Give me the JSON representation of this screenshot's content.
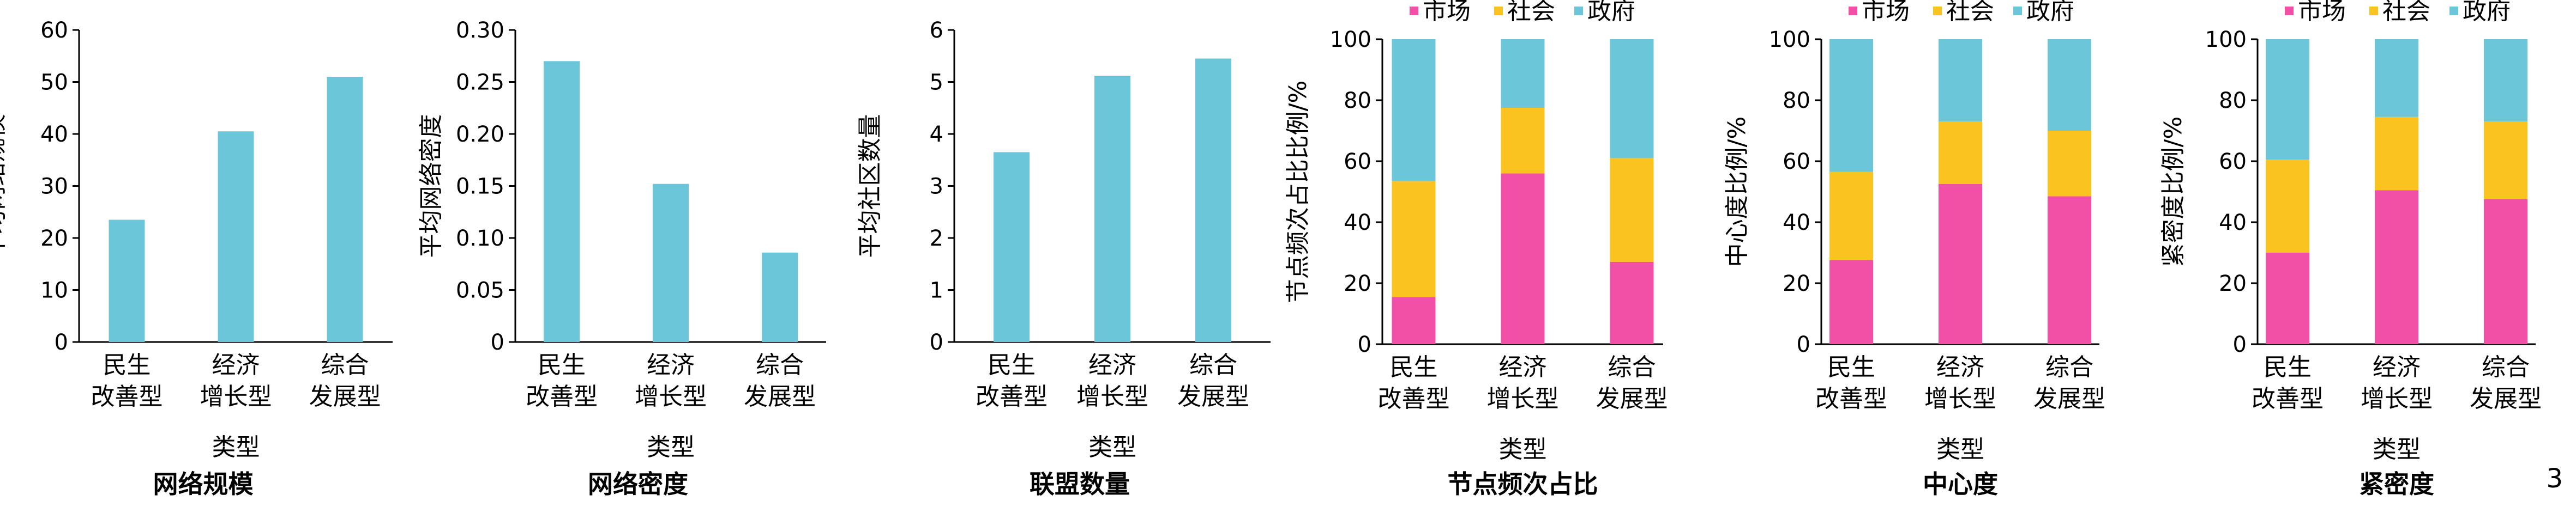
{
  "colors": {
    "bar": "#6bc6da",
    "market": "#f24fa6",
    "society": "#fbc31f",
    "government": "#6bc6da"
  },
  "page_number": "3",
  "chart_data": [
    {
      "type": "bar",
      "title": "网络规模",
      "xlabel": "类型",
      "ylabel": "平均网络规模",
      "categories": [
        [
          "民生",
          "改善型"
        ],
        [
          "经济",
          "增长型"
        ],
        [
          "综合",
          "发展型"
        ]
      ],
      "values": [
        23.5,
        40.5,
        51
      ],
      "ylim": [
        0,
        60
      ],
      "yticks": [
        "0",
        "10",
        "20",
        "30",
        "40",
        "50",
        "60"
      ],
      "ytick_values": [
        0,
        10,
        20,
        30,
        40,
        50,
        60
      ],
      "grid": false
    },
    {
      "type": "bar",
      "title": "网络密度",
      "xlabel": "类型",
      "ylabel": "平均网络密度",
      "categories": [
        [
          "民生",
          "改善型"
        ],
        [
          "经济",
          "增长型"
        ],
        [
          "综合",
          "发展型"
        ]
      ],
      "values": [
        0.27,
        0.152,
        0.086
      ],
      "ylim": [
        0,
        0.3
      ],
      "yticks": [
        "0",
        "0.05",
        "0.10",
        "0.15",
        "0.20",
        "0.25",
        "0.30"
      ],
      "ytick_values": [
        0,
        0.05,
        0.1,
        0.15,
        0.2,
        0.25,
        0.3
      ],
      "grid": false
    },
    {
      "type": "bar",
      "title": "联盟数量",
      "xlabel": "类型",
      "ylabel": "平均社区数量",
      "categories": [
        [
          "民生",
          "改善型"
        ],
        [
          "经济",
          "增长型"
        ],
        [
          "综合",
          "发展型"
        ]
      ],
      "values": [
        3.65,
        5.12,
        5.45
      ],
      "ylim": [
        0,
        6
      ],
      "yticks": [
        "0",
        "1",
        "2",
        "3",
        "4",
        "5",
        "6"
      ],
      "ytick_values": [
        0,
        1,
        2,
        3,
        4,
        5,
        6
      ],
      "grid": false
    },
    {
      "type": "stacked-bar",
      "title": "节点频次占比",
      "xlabel": "类型",
      "ylabel": "节点频次占比比例/%",
      "categories": [
        [
          "民生",
          "改善型"
        ],
        [
          "经济",
          "增长型"
        ],
        [
          "综合",
          "发展型"
        ]
      ],
      "legend": [
        "市场",
        "社会",
        "政府"
      ],
      "series": [
        {
          "name": "市场",
          "values": [
            15.5,
            56,
            27
          ]
        },
        {
          "name": "社会",
          "values": [
            38,
            21.5,
            34
          ]
        },
        {
          "name": "政府",
          "values": [
            46.5,
            22.5,
            39
          ]
        }
      ],
      "ylim": [
        0,
        100
      ],
      "yticks": [
        "0",
        "20",
        "40",
        "60",
        "80",
        "100"
      ],
      "ytick_values": [
        0,
        20,
        40,
        60,
        80,
        100
      ],
      "grid": false,
      "legend_position": "top"
    },
    {
      "type": "stacked-bar",
      "title": "中心度",
      "xlabel": "类型",
      "ylabel": "中心度比例/%",
      "categories": [
        [
          "民生",
          "改善型"
        ],
        [
          "经济",
          "增长型"
        ],
        [
          "综合",
          "发展型"
        ]
      ],
      "legend": [
        "市场",
        "社会",
        "政府"
      ],
      "series": [
        {
          "name": "市场",
          "values": [
            27.5,
            52.5,
            48.5
          ]
        },
        {
          "name": "社会",
          "values": [
            29,
            20.5,
            21.5
          ]
        },
        {
          "name": "政府",
          "values": [
            43.5,
            27,
            30
          ]
        }
      ],
      "ylim": [
        0,
        100
      ],
      "yticks": [
        "0",
        "20",
        "40",
        "60",
        "80",
        "100"
      ],
      "ytick_values": [
        0,
        20,
        40,
        60,
        80,
        100
      ],
      "grid": false,
      "legend_position": "top"
    },
    {
      "type": "stacked-bar",
      "title": "紧密度",
      "xlabel": "类型",
      "ylabel": "紧密度比例/%",
      "categories": [
        [
          "民生",
          "改善型"
        ],
        [
          "经济",
          "增长型"
        ],
        [
          "综合",
          "发展型"
        ]
      ],
      "legend": [
        "市场",
        "社会",
        "政府"
      ],
      "series": [
        {
          "name": "市场",
          "values": [
            30,
            50.5,
            47.5
          ]
        },
        {
          "name": "社会",
          "values": [
            30.5,
            24,
            25.5
          ]
        },
        {
          "name": "政府",
          "values": [
            39.5,
            25.5,
            27
          ]
        }
      ],
      "ylim": [
        0,
        100
      ],
      "yticks": [
        "0",
        "20",
        "40",
        "60",
        "80",
        "100"
      ],
      "ytick_values": [
        0,
        20,
        40,
        60,
        80,
        100
      ],
      "grid": false,
      "legend_position": "top"
    }
  ]
}
